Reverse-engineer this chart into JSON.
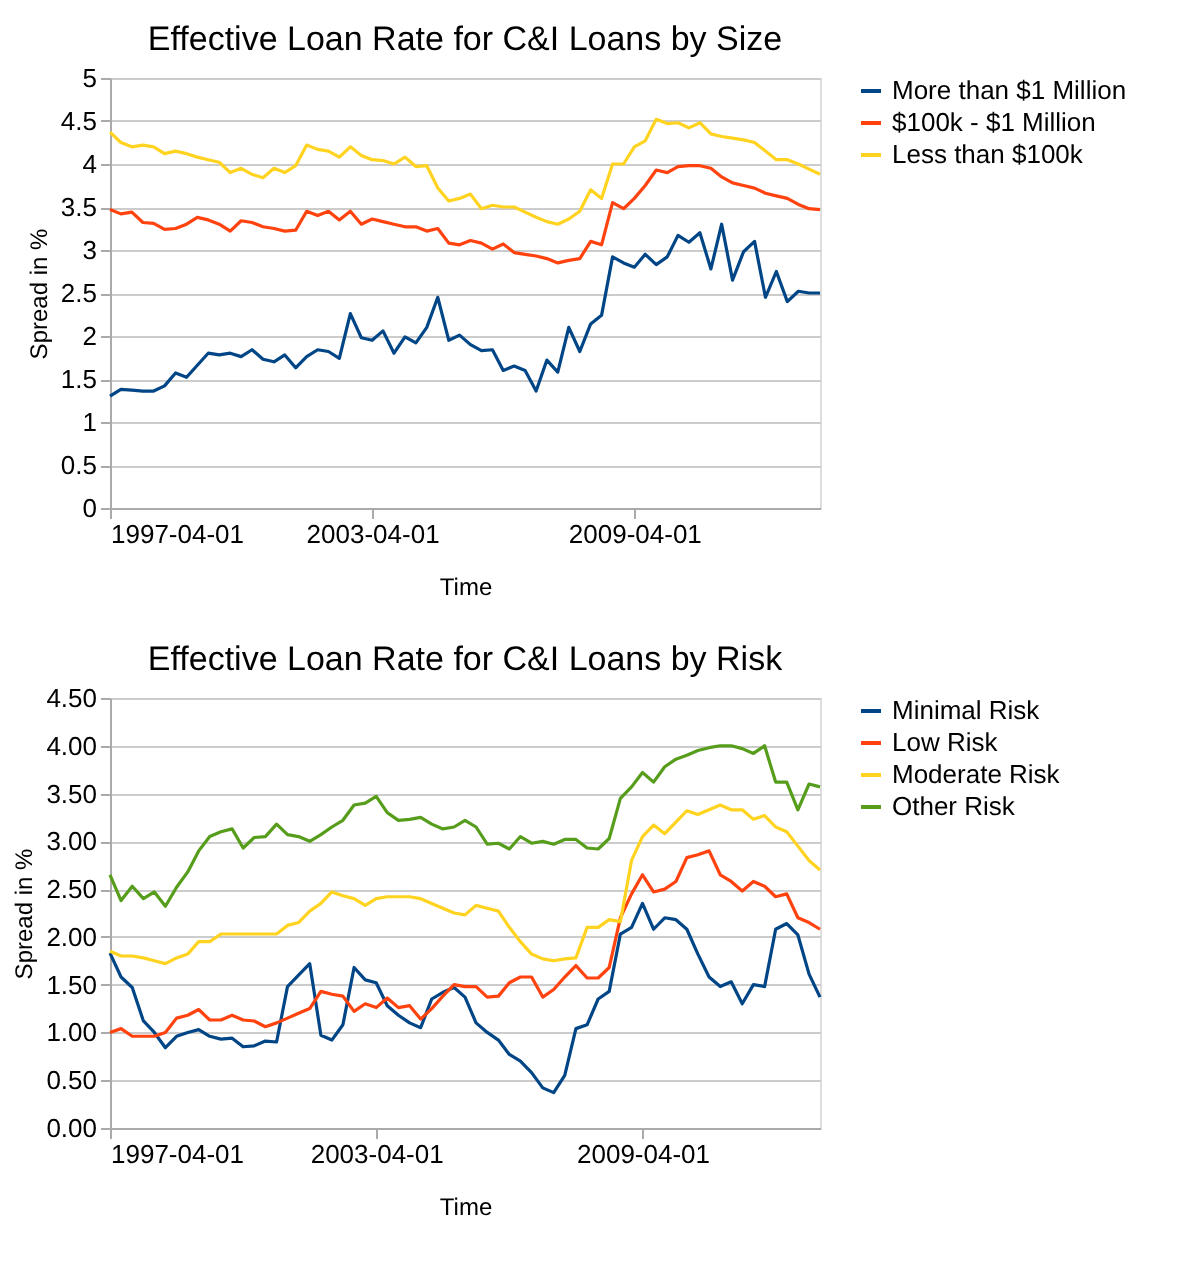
{
  "chart_data": [
    {
      "type": "line",
      "title": "Effective Loan Rate for C&I Loans by Size",
      "xlabel": "Time",
      "ylabel": "Spread in %",
      "x": [
        "1997-04-01",
        "1997-07-01",
        "1997-10-01",
        "1998-01-01",
        "1998-04-01",
        "1998-07-01",
        "1998-10-01",
        "1999-01-01",
        "1999-04-01",
        "1999-07-01",
        "1999-10-01",
        "2000-01-01",
        "2000-04-01",
        "2000-07-01",
        "2000-10-01",
        "2001-01-01",
        "2001-04-01",
        "2001-07-01",
        "2001-10-01",
        "2002-01-01",
        "2002-04-01",
        "2002-07-01",
        "2002-10-01",
        "2003-01-01",
        "2003-04-01",
        "2003-07-01",
        "2003-10-01",
        "2004-01-01",
        "2004-04-01",
        "2004-07-01",
        "2004-10-01",
        "2005-01-01",
        "2005-04-01",
        "2005-07-01",
        "2005-10-01",
        "2006-01-01",
        "2006-04-01",
        "2006-07-01",
        "2006-10-01",
        "2007-01-01",
        "2007-04-01",
        "2007-07-01",
        "2007-10-01",
        "2008-01-01",
        "2008-04-01",
        "2008-07-01",
        "2008-10-01",
        "2009-01-01",
        "2009-04-01",
        "2009-07-01",
        "2009-10-01",
        "2010-01-01",
        "2010-04-01",
        "2010-07-01",
        "2010-10-01",
        "2011-01-01",
        "2011-04-01",
        "2011-07-01",
        "2011-10-01",
        "2012-01-01",
        "2012-04-01",
        "2012-07-01",
        "2012-10-01",
        "2013-01-01",
        "2013-04-01",
        "2013-07-01"
      ],
      "series": [
        {
          "name": "More than $1 Million",
          "color": "#004586",
          "values": [
            1.3,
            1.38,
            1.37,
            1.36,
            1.36,
            1.42,
            1.57,
            1.52,
            1.66,
            1.8,
            1.78,
            1.8,
            1.76,
            1.84,
            1.73,
            1.7,
            1.78,
            1.63,
            1.76,
            1.84,
            1.82,
            1.74,
            2.26,
            1.98,
            1.95,
            2.06,
            1.8,
            1.99,
            1.92,
            2.1,
            2.45,
            1.95,
            2.01,
            1.9,
            1.83,
            1.84,
            1.6,
            1.65,
            1.6,
            1.36,
            1.72,
            1.58,
            2.1,
            1.82,
            2.14,
            2.24,
            2.92,
            2.85,
            2.8,
            2.95,
            2.83,
            2.92,
            3.17,
            3.09,
            3.2,
            2.78,
            3.3,
            2.65,
            2.98,
            3.1,
            2.45,
            2.75,
            2.4,
            2.52,
            2.5,
            2.5
          ]
        },
        {
          "name": "$100k - $1 Million",
          "color": "#ff420e",
          "values": [
            3.47,
            3.42,
            3.44,
            3.32,
            3.31,
            3.24,
            3.25,
            3.3,
            3.38,
            3.35,
            3.3,
            3.22,
            3.34,
            3.32,
            3.27,
            3.25,
            3.22,
            3.23,
            3.45,
            3.4,
            3.45,
            3.35,
            3.45,
            3.3,
            3.36,
            3.33,
            3.3,
            3.27,
            3.27,
            3.22,
            3.25,
            3.08,
            3.06,
            3.11,
            3.08,
            3.01,
            3.07,
            2.97,
            2.95,
            2.93,
            2.9,
            2.85,
            2.88,
            2.9,
            3.1,
            3.06,
            3.55,
            3.48,
            3.6,
            3.75,
            3.93,
            3.9,
            3.97,
            3.98,
            3.98,
            3.95,
            3.85,
            3.78,
            3.75,
            3.72,
            3.66,
            3.63,
            3.6,
            3.53,
            3.48,
            3.47
          ]
        },
        {
          "name": "Less than $100k",
          "color": "#ffd320",
          "values": [
            4.37,
            4.25,
            4.2,
            4.22,
            4.2,
            4.12,
            4.15,
            4.12,
            4.08,
            4.05,
            4.02,
            3.9,
            3.95,
            3.88,
            3.84,
            3.95,
            3.9,
            3.98,
            4.22,
            4.17,
            4.15,
            4.08,
            4.2,
            4.1,
            4.05,
            4.04,
            4.0,
            4.08,
            3.97,
            3.98,
            3.72,
            3.57,
            3.6,
            3.65,
            3.48,
            3.52,
            3.5,
            3.5,
            3.44,
            3.38,
            3.33,
            3.3,
            3.36,
            3.45,
            3.7,
            3.6,
            4.0,
            4.0,
            4.2,
            4.27,
            4.52,
            4.47,
            4.48,
            4.42,
            4.48,
            4.35,
            4.32,
            4.3,
            4.28,
            4.25,
            4.15,
            4.05,
            4.05,
            4.0,
            3.94,
            3.88
          ]
        }
      ],
      "xlim": [
        "1997-04-01",
        "2013-07-01"
      ],
      "xticks": [
        "1997-04-01",
        "2003-04-01",
        "2009-04-01"
      ],
      "ylim": [
        0,
        5
      ],
      "yticks": [
        0,
        0.5,
        1,
        1.5,
        2,
        2.5,
        3,
        3.5,
        4,
        4.5,
        5
      ],
      "grid": "y",
      "legend": "right",
      "marker": "none",
      "line_style": "solid"
    },
    {
      "type": "line",
      "title": "Effective Loan Rate for C&I Loans by Risk",
      "xlabel": "Time",
      "ylabel": "Spread in %",
      "x": [
        "1997-04-01",
        "1997-07-01",
        "1997-10-01",
        "1998-01-01",
        "1998-04-01",
        "1998-07-01",
        "1998-10-01",
        "1999-01-01",
        "1999-04-01",
        "1999-07-01",
        "1999-10-01",
        "2000-01-01",
        "2000-04-01",
        "2000-07-01",
        "2000-10-01",
        "2001-01-01",
        "2001-04-01",
        "2001-07-01",
        "2001-10-01",
        "2002-01-01",
        "2002-04-01",
        "2002-07-01",
        "2002-10-01",
        "2003-01-01",
        "2003-04-01",
        "2003-07-01",
        "2003-10-01",
        "2004-01-01",
        "2004-04-01",
        "2004-07-01",
        "2004-10-01",
        "2005-01-01",
        "2005-04-01",
        "2005-07-01",
        "2005-10-01",
        "2006-01-01",
        "2006-04-01",
        "2006-07-01",
        "2006-10-01",
        "2007-01-01",
        "2007-04-01",
        "2007-07-01",
        "2007-10-01",
        "2008-01-01",
        "2008-04-01",
        "2008-07-01",
        "2008-10-01",
        "2009-01-01",
        "2009-04-01",
        "2009-07-01",
        "2009-10-01",
        "2010-01-01",
        "2010-04-01",
        "2010-07-01",
        "2010-10-01",
        "2011-01-01",
        "2011-04-01",
        "2011-07-01",
        "2011-10-01",
        "2012-01-01",
        "2012-04-01",
        "2012-07-01",
        "2012-10-01",
        "2013-01-01",
        "2013-04-01"
      ],
      "series": [
        {
          "name": "Minimal Risk",
          "color": "#004586",
          "values": [
            1.83,
            1.58,
            1.47,
            1.12,
            1.0,
            0.84,
            0.96,
            1.0,
            1.03,
            0.96,
            0.93,
            0.94,
            0.85,
            0.86,
            0.91,
            0.9,
            1.48,
            1.6,
            1.72,
            0.97,
            0.92,
            1.08,
            1.68,
            1.55,
            1.52,
            1.28,
            1.18,
            1.1,
            1.05,
            1.35,
            1.42,
            1.47,
            1.37,
            1.1,
            1.0,
            0.92,
            0.77,
            0.7,
            0.58,
            0.42,
            0.37,
            0.55,
            1.04,
            1.08,
            1.35,
            1.43,
            2.03,
            2.1,
            2.35,
            2.08,
            2.2,
            2.18,
            2.08,
            1.82,
            1.58,
            1.48,
            1.53,
            1.3,
            1.5,
            1.48,
            2.08,
            2.14,
            2.02,
            1.61,
            1.37
          ]
        },
        {
          "name": "Low Risk",
          "color": "#ff420e",
          "values": [
            1.0,
            1.04,
            0.96,
            0.96,
            0.96,
            1.0,
            1.15,
            1.18,
            1.24,
            1.13,
            1.13,
            1.18,
            1.13,
            1.12,
            1.06,
            1.1,
            1.15,
            1.2,
            1.25,
            1.43,
            1.4,
            1.38,
            1.22,
            1.3,
            1.26,
            1.36,
            1.26,
            1.28,
            1.14,
            1.25,
            1.38,
            1.5,
            1.48,
            1.48,
            1.37,
            1.38,
            1.52,
            1.58,
            1.58,
            1.37,
            1.45,
            1.58,
            1.7,
            1.57,
            1.57,
            1.68,
            2.2,
            2.45,
            2.65,
            2.47,
            2.5,
            2.58,
            2.83,
            2.86,
            2.9,
            2.65,
            2.58,
            2.48,
            2.58,
            2.53,
            2.42,
            2.45,
            2.2,
            2.15,
            2.08
          ]
        },
        {
          "name": "Moderate Risk",
          "color": "#ffd320",
          "values": [
            1.85,
            1.8,
            1.8,
            1.78,
            1.75,
            1.72,
            1.78,
            1.82,
            1.95,
            1.95,
            2.03,
            2.03,
            2.03,
            2.03,
            2.03,
            2.03,
            2.12,
            2.15,
            2.27,
            2.35,
            2.47,
            2.43,
            2.4,
            2.33,
            2.4,
            2.42,
            2.42,
            2.42,
            2.4,
            2.35,
            2.3,
            2.25,
            2.23,
            2.33,
            2.3,
            2.27,
            2.1,
            1.95,
            1.82,
            1.77,
            1.75,
            1.77,
            1.78,
            2.1,
            2.1,
            2.18,
            2.16,
            2.8,
            3.05,
            3.17,
            3.08,
            3.2,
            3.32,
            3.28,
            3.33,
            3.38,
            3.33,
            3.33,
            3.23,
            3.27,
            3.15,
            3.1,
            2.95,
            2.8,
            2.7
          ]
        },
        {
          "name": "Other Risk",
          "color": "#579d1c",
          "values": [
            2.65,
            2.38,
            2.53,
            2.4,
            2.47,
            2.32,
            2.52,
            2.68,
            2.9,
            3.05,
            3.1,
            3.13,
            2.93,
            3.04,
            3.05,
            3.18,
            3.07,
            3.05,
            3.0,
            3.07,
            3.15,
            3.22,
            3.38,
            3.4,
            3.47,
            3.3,
            3.22,
            3.23,
            3.25,
            3.18,
            3.13,
            3.15,
            3.22,
            3.15,
            2.97,
            2.98,
            2.92,
            3.05,
            2.98,
            3.0,
            2.97,
            3.02,
            3.02,
            2.93,
            2.92,
            3.03,
            3.45,
            3.57,
            3.72,
            3.62,
            3.78,
            3.86,
            3.9,
            3.95,
            3.98,
            4.0,
            4.0,
            3.97,
            3.92,
            4.0,
            3.62,
            3.62,
            3.33,
            3.6,
            3.57
          ]
        }
      ],
      "xlim": [
        "1997-04-01",
        "2013-04-01"
      ],
      "xticks": [
        "1997-04-01",
        "2003-04-01",
        "2009-04-01"
      ],
      "ylim": [
        0,
        4.5
      ],
      "yticks": [
        {
          "value": 0,
          "label": "0.00"
        },
        {
          "value": 0.5,
          "label": "0.50"
        },
        {
          "value": 1,
          "label": "1.00"
        },
        {
          "value": 1.5,
          "label": "1.50"
        },
        {
          "value": 2,
          "label": "2.00"
        },
        {
          "value": 2.5,
          "label": "2.50"
        },
        {
          "value": 3,
          "label": "3.00"
        },
        {
          "value": 3.5,
          "label": "3.50"
        },
        {
          "value": 4,
          "label": "4.00"
        },
        {
          "value": 4.5,
          "label": "4.50"
        }
      ],
      "grid": "y",
      "legend": "right",
      "marker": "none",
      "line_style": "solid"
    }
  ]
}
